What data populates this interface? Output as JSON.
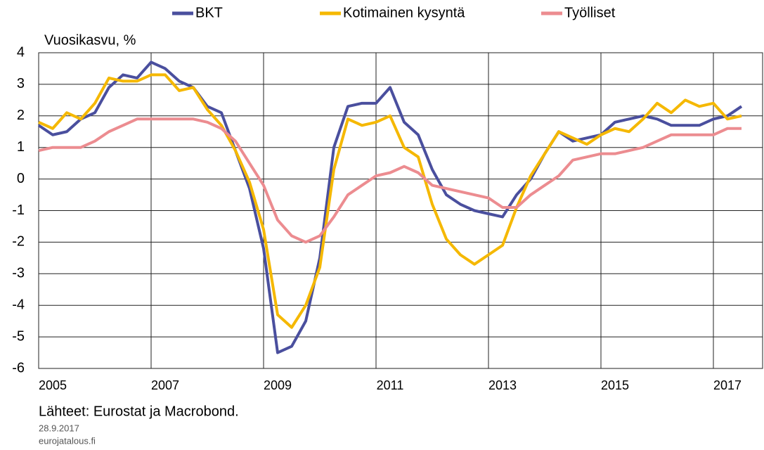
{
  "chart_data": {
    "type": "line",
    "y_label": "Vuosikasvu, %",
    "source": "Lähteet: Eurostat ja Macrobond.",
    "date": "28.9.2017",
    "site": "eurojatalous.fi",
    "x": [
      2005,
      2005.25,
      2005.5,
      2005.75,
      2006,
      2006.25,
      2006.5,
      2006.75,
      2007,
      2007.25,
      2007.5,
      2007.75,
      2008,
      2008.25,
      2008.5,
      2008.75,
      2009,
      2009.25,
      2009.5,
      2009.75,
      2010,
      2010.25,
      2010.5,
      2010.75,
      2011,
      2011.25,
      2011.5,
      2011.75,
      2012,
      2012.25,
      2012.5,
      2012.75,
      2013,
      2013.25,
      2013.5,
      2013.75,
      2014,
      2014.25,
      2014.5,
      2014.75,
      2015,
      2015.25,
      2015.5,
      2015.75,
      2016,
      2016.25,
      2016.5,
      2016.75,
      2017,
      2017.25,
      2017.5
    ],
    "series": [
      {
        "name": "BKT",
        "color": "#4a4f9e",
        "values": [
          1.7,
          1.4,
          1.5,
          1.9,
          2.1,
          2.9,
          3.3,
          3.2,
          3.7,
          3.5,
          3.1,
          2.9,
          2.3,
          2.1,
          0.9,
          -0.3,
          -2.2,
          -5.5,
          -5.3,
          -4.5,
          -2.5,
          1.0,
          2.3,
          2.4,
          2.4,
          2.9,
          1.8,
          1.4,
          0.3,
          -0.5,
          -0.8,
          -1.0,
          -1.1,
          -1.2,
          -0.5,
          0.0,
          0.8,
          1.5,
          1.2,
          1.3,
          1.4,
          1.8,
          1.9,
          2.0,
          1.9,
          1.7,
          1.7,
          1.7,
          1.9,
          2.0,
          2.3
        ]
      },
      {
        "name": "Kotimainen kysyntä",
        "color": "#f5b800",
        "values": [
          1.8,
          1.6,
          2.1,
          1.9,
          2.4,
          3.2,
          3.1,
          3.1,
          3.3,
          3.3,
          2.8,
          2.9,
          2.2,
          1.7,
          0.9,
          -0.1,
          -1.6,
          -4.3,
          -4.7,
          -4.0,
          -2.8,
          0.3,
          1.9,
          1.7,
          1.8,
          2.0,
          1.0,
          0.7,
          -0.8,
          -1.9,
          -2.4,
          -2.7,
          -2.4,
          -2.1,
          -0.9,
          0.1,
          0.8,
          1.5,
          1.3,
          1.1,
          1.4,
          1.6,
          1.5,
          1.9,
          2.4,
          2.1,
          2.5,
          2.3,
          2.4,
          1.9,
          2.0
        ]
      },
      {
        "name": "Työlliset",
        "color": "#ec8c90",
        "values": [
          0.9,
          1.0,
          1.0,
          1.0,
          1.2,
          1.5,
          1.7,
          1.9,
          1.9,
          1.9,
          1.9,
          1.9,
          1.8,
          1.6,
          1.2,
          0.5,
          -0.2,
          -1.3,
          -1.8,
          -2.0,
          -1.8,
          -1.2,
          -0.5,
          -0.2,
          0.1,
          0.2,
          0.4,
          0.2,
          -0.2,
          -0.3,
          -0.4,
          -0.5,
          -0.6,
          -0.9,
          -0.9,
          -0.5,
          -0.2,
          0.1,
          0.6,
          0.7,
          0.8,
          0.8,
          0.9,
          1.0,
          1.2,
          1.4,
          1.4,
          1.4,
          1.4,
          1.6,
          1.6
        ]
      }
    ],
    "xlim": [
      2005,
      2017.875
    ],
    "xticks": [
      2005,
      2007,
      2009,
      2011,
      2013,
      2015,
      2017
    ],
    "ylim": [
      -6,
      4
    ],
    "yticks": [
      -6,
      -5,
      -4,
      -3,
      -2,
      -1,
      0,
      1,
      2,
      3,
      4
    ],
    "grid": true
  }
}
